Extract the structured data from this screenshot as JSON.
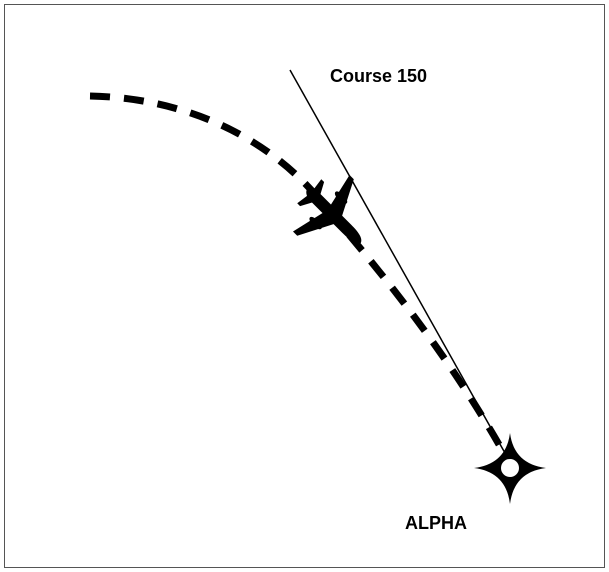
{
  "labels": {
    "course": "Course 150",
    "waypoint": "ALPHA"
  }
}
